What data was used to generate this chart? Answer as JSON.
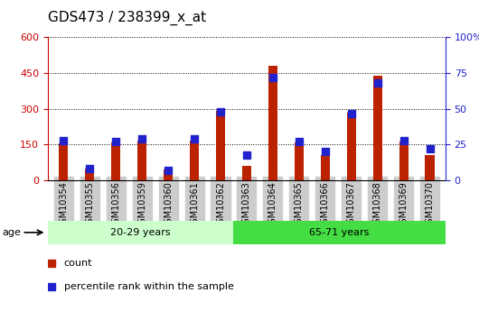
{
  "title": "GDS473 / 238399_x_at",
  "samples": [
    "GSM10354",
    "GSM10355",
    "GSM10356",
    "GSM10359",
    "GSM10360",
    "GSM10361",
    "GSM10362",
    "GSM10363",
    "GSM10364",
    "GSM10365",
    "GSM10366",
    "GSM10367",
    "GSM10368",
    "GSM10369",
    "GSM10370"
  ],
  "counts": [
    155,
    50,
    158,
    165,
    45,
    168,
    290,
    60,
    480,
    160,
    105,
    285,
    440,
    162,
    105
  ],
  "percentiles": [
    28,
    8,
    27,
    29,
    7,
    29,
    48,
    18,
    72,
    27,
    20,
    47,
    68,
    28,
    22
  ],
  "group1_label": "20-29 years",
  "group2_label": "65-71 years",
  "group1_count": 7,
  "group2_count": 8,
  "bar_color": "#bb2200",
  "marker_color": "#2222cc",
  "group1_bg": "#ccffcc",
  "group2_bg": "#44dd44",
  "tick_bg": "#cccccc",
  "left_axis_color": "#cc0000",
  "right_axis_color": "#2222cc",
  "ylim_left": [
    0,
    600
  ],
  "ylim_right": [
    0,
    100
  ],
  "yticks_left": [
    0,
    150,
    300,
    450,
    600
  ],
  "yticks_right": [
    0,
    25,
    50,
    75,
    100
  ],
  "ytick_labels_right": [
    "0",
    "25",
    "50",
    "75",
    "100%"
  ],
  "legend_count_label": "count",
  "legend_pct_label": "percentile rank within the sample",
  "age_label": "age",
  "title_fontsize": 11,
  "axis_fontsize": 8,
  "label_fontsize": 8,
  "bar_width": 0.35,
  "marker_size": 6
}
